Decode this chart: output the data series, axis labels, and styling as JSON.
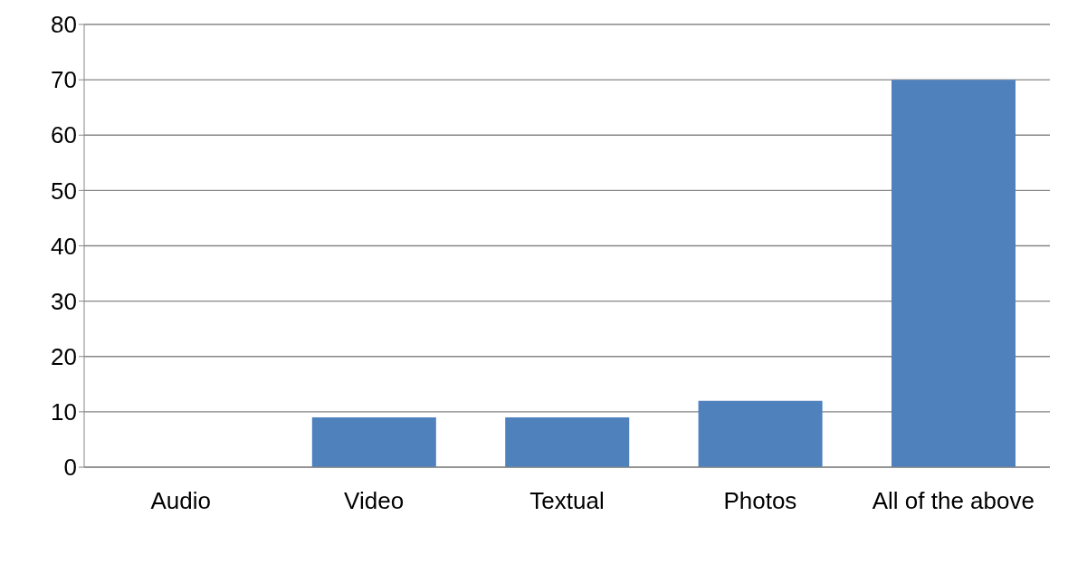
{
  "chart_data": {
    "type": "bar",
    "categories": [
      "Audio",
      "Video",
      "Textual",
      "Photos",
      "All of the above"
    ],
    "values": [
      0,
      9,
      9,
      12,
      70
    ],
    "color": "#4f81bd",
    "ylim": [
      0,
      80
    ],
    "yticks": [
      0,
      10,
      20,
      30,
      40,
      50,
      60,
      70,
      80
    ],
    "grid": "y"
  }
}
